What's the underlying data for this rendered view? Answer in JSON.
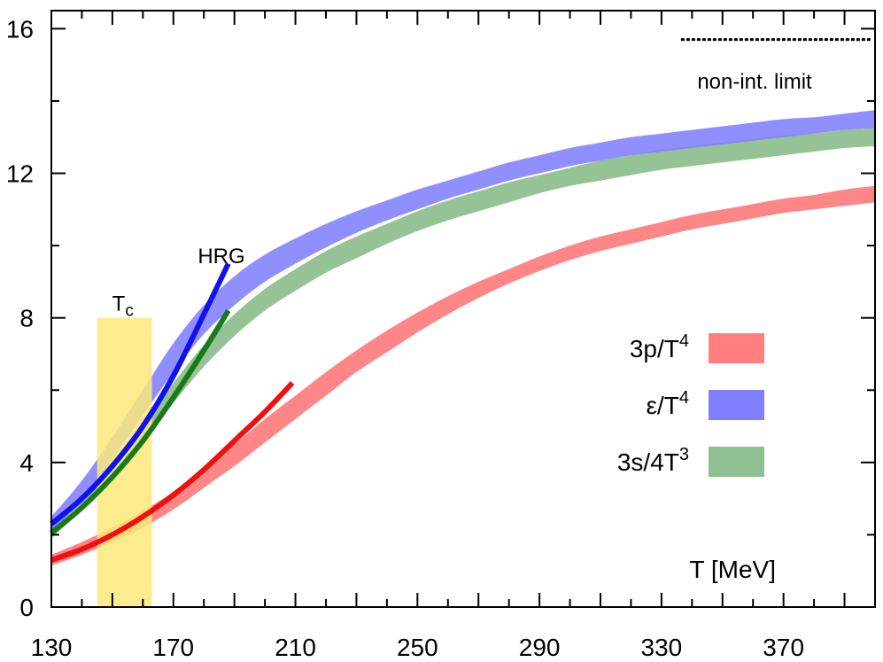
{
  "chart_data": {
    "type": "area",
    "xlabel": "T [MeV]",
    "xlim": [
      130,
      400
    ],
    "ylim": [
      0,
      16.5
    ],
    "x_ticks": [
      130,
      170,
      210,
      250,
      290,
      330,
      370
    ],
    "y_ticks": [
      0,
      4,
      8,
      12,
      16
    ],
    "grid": false,
    "legend": "right",
    "tc_band": {
      "label_main": "T",
      "label_sub": "c",
      "x_range": [
        145,
        163
      ],
      "y_range": [
        0,
        8
      ],
      "color": "#fce97a"
    },
    "noninteracting_limit": {
      "label": "non-int. limit",
      "y": 15.7,
      "x_range": [
        330,
        400
      ]
    },
    "hrg": {
      "label": "HRG"
    },
    "series": [
      {
        "name": "3p/T⁴",
        "legend_main": "3p/T",
        "legend_sup": "4",
        "color": "#ff7f7f",
        "hrg_color": "#ee1111",
        "x": [
          130,
          140,
          150,
          160,
          170,
          180,
          190,
          200,
          210,
          220,
          230,
          240,
          250,
          260,
          270,
          280,
          290,
          300,
          310,
          320,
          330,
          340,
          350,
          360,
          370,
          380,
          390,
          400
        ],
        "lower": [
          1.15,
          1.45,
          1.8,
          2.2,
          2.7,
          3.3,
          3.9,
          4.55,
          5.2,
          5.85,
          6.5,
          7.05,
          7.6,
          8.1,
          8.55,
          8.95,
          9.3,
          9.6,
          9.85,
          10.05,
          10.25,
          10.45,
          10.6,
          10.75,
          10.9,
          11.0,
          11.1,
          11.2
        ],
        "upper": [
          1.45,
          1.8,
          2.2,
          2.65,
          3.2,
          3.85,
          4.5,
          5.2,
          5.85,
          6.5,
          7.1,
          7.65,
          8.15,
          8.6,
          9.0,
          9.35,
          9.7,
          10.0,
          10.25,
          10.45,
          10.65,
          10.85,
          11.0,
          11.15,
          11.3,
          11.4,
          11.55,
          11.65
        ],
        "hrg_x": [
          130,
          140,
          150,
          160,
          170,
          180,
          190,
          200,
          209
        ],
        "hrg_y": [
          1.3,
          1.6,
          2.0,
          2.5,
          3.1,
          3.8,
          4.6,
          5.4,
          6.2
        ]
      },
      {
        "name": "ε/T⁴",
        "legend_main": "ε/T",
        "legend_sup": "4",
        "color": "#7f7fff",
        "hrg_color": "#1111ee",
        "x": [
          130,
          140,
          150,
          160,
          170,
          180,
          190,
          200,
          210,
          220,
          230,
          240,
          250,
          260,
          270,
          280,
          290,
          300,
          310,
          320,
          330,
          340,
          350,
          360,
          370,
          380,
          390,
          400
        ],
        "lower": [
          2.05,
          3.0,
          4.1,
          5.3,
          6.5,
          7.55,
          8.35,
          9.0,
          9.5,
          9.95,
          10.35,
          10.7,
          11.0,
          11.3,
          11.55,
          11.8,
          12.0,
          12.2,
          12.35,
          12.5,
          12.6,
          12.7,
          12.8,
          12.9,
          13.0,
          13.1,
          13.2,
          13.25
        ],
        "upper": [
          2.5,
          3.5,
          4.7,
          6.0,
          7.3,
          8.35,
          9.15,
          9.75,
          10.2,
          10.6,
          10.95,
          11.25,
          11.55,
          11.8,
          12.05,
          12.3,
          12.5,
          12.7,
          12.85,
          13.0,
          13.1,
          13.2,
          13.3,
          13.4,
          13.5,
          13.55,
          13.65,
          13.75
        ],
        "hrg_x": [
          130,
          140,
          150,
          160,
          170,
          180,
          188
        ],
        "hrg_y": [
          2.3,
          3.0,
          3.9,
          5.0,
          6.4,
          8.1,
          9.5
        ]
      },
      {
        "name": "3s/4T³",
        "legend_main": "3s/4T",
        "legend_sup": "3",
        "color": "#8fc08f",
        "hrg_color": "#1a7a1a",
        "x": [
          130,
          140,
          150,
          160,
          170,
          180,
          190,
          200,
          210,
          220,
          230,
          240,
          250,
          260,
          270,
          280,
          290,
          300,
          310,
          320,
          330,
          340,
          350,
          360,
          370,
          380,
          390,
          400
        ],
        "lower": [
          1.9,
          2.7,
          3.6,
          4.6,
          5.65,
          6.65,
          7.5,
          8.2,
          8.75,
          9.25,
          9.65,
          10.05,
          10.4,
          10.7,
          10.95,
          11.2,
          11.45,
          11.65,
          11.8,
          11.95,
          12.1,
          12.2,
          12.3,
          12.4,
          12.5,
          12.6,
          12.7,
          12.75
        ],
        "upper": [
          2.3,
          3.1,
          4.05,
          5.1,
          6.2,
          7.25,
          8.1,
          8.8,
          9.35,
          9.85,
          10.25,
          10.6,
          10.95,
          11.25,
          11.5,
          11.75,
          11.95,
          12.15,
          12.35,
          12.5,
          12.65,
          12.75,
          12.85,
          12.95,
          13.05,
          13.1,
          13.2,
          13.25
        ],
        "hrg_x": [
          130,
          140,
          150,
          160,
          170,
          180,
          188
        ],
        "hrg_y": [
          2.05,
          2.75,
          3.6,
          4.6,
          5.8,
          7.1,
          8.2
        ]
      }
    ]
  }
}
